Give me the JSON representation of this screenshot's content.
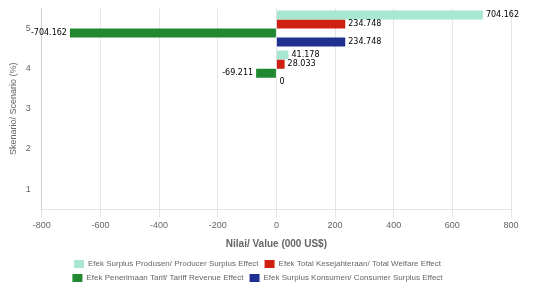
{
  "chart_data": {
    "type": "bar",
    "orientation": "horizontal",
    "xlabel": "Nilai/ Value (000 US$)",
    "ylabel": "Skenario/ Scenario (%)",
    "categories": [
      "1",
      "2",
      "3",
      "4",
      "5"
    ],
    "series": [
      {
        "name": "Efek Surplus Produsen/ Producer Surplus Effect",
        "color": "#a8e8d0",
        "values": [
          0,
          0,
          0,
          41.178,
          704.162
        ],
        "value_labels": [
          null,
          null,
          null,
          "41.178",
          "704.162"
        ]
      },
      {
        "name": "Efek Total Kesejahteraan/ Total Welfare Effect",
        "color": "#d02010",
        "values": [
          0,
          0,
          0,
          28.033,
          234.748
        ],
        "value_labels": [
          null,
          null,
          null,
          "28.033",
          "234.748"
        ]
      },
      {
        "name": "Efek Penerimaan Tarif/ Tariff Revenue Effect",
        "color": "#208830",
        "values": [
          0,
          0,
          0,
          -69.211,
          -704.162
        ],
        "value_labels": [
          null,
          null,
          null,
          "-69.211",
          "-704.162"
        ]
      },
      {
        "name": "Efek Surplus Konsumen/ Consumer Surplus Effect",
        "color": "#203090",
        "values": [
          0,
          0,
          0,
          0,
          234.748
        ],
        "value_labels": [
          null,
          null,
          null,
          "0",
          "234.748"
        ]
      }
    ],
    "xlim": [
      -800,
      800
    ],
    "xticks": [
      -800,
      -600,
      -400,
      -200,
      0,
      200,
      400,
      600,
      800
    ],
    "grid": "x",
    "legend": "bottom",
    "data_labels": true
  }
}
